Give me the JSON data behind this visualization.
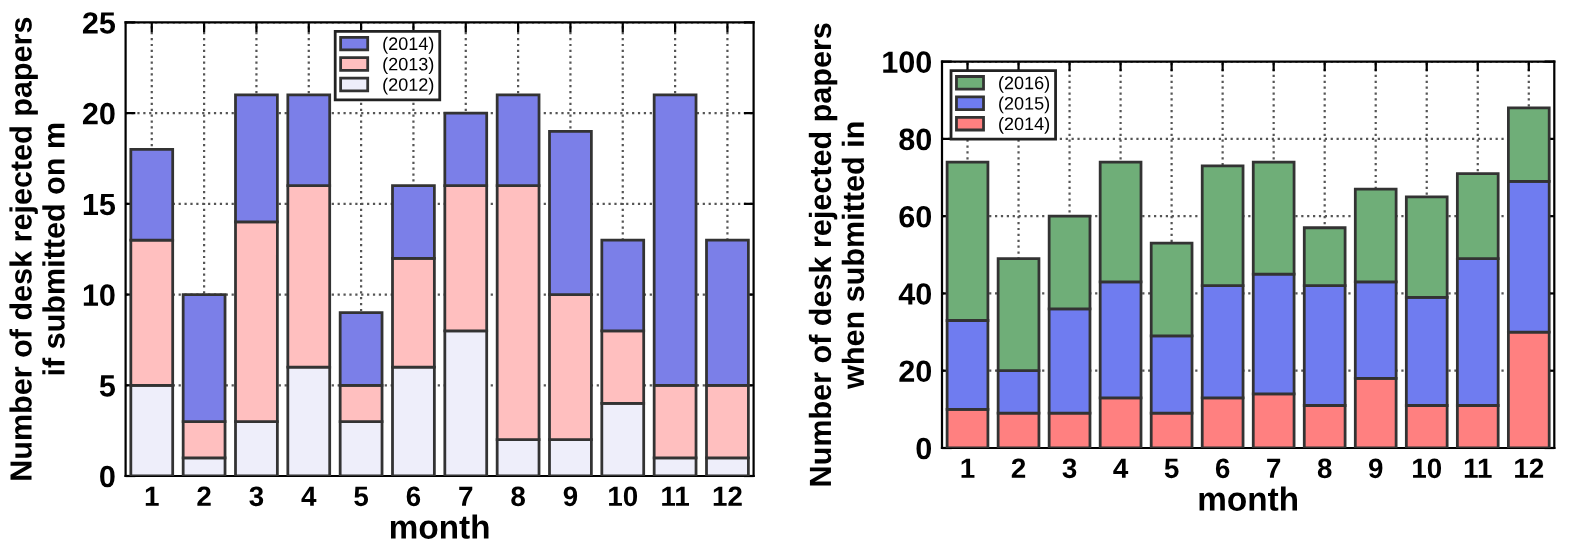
{
  "chart_data": [
    {
      "type": "bar",
      "stacked": true,
      "xlabel": "month",
      "ylabel": "Number of desk rejected papers\nif submitted on m",
      "categories": [
        "1",
        "2",
        "3",
        "4",
        "5",
        "6",
        "7",
        "8",
        "9",
        "10",
        "11",
        "12"
      ],
      "ylim": [
        0,
        25
      ],
      "yticks": [
        0,
        5,
        10,
        15,
        20,
        25
      ],
      "grid": true,
      "legend": "top",
      "series": [
        {
          "name": "(2012)",
          "color": "#eeeefa",
          "values": [
            5,
            1,
            3,
            6,
            3,
            6,
            8,
            2,
            2,
            4,
            1,
            1
          ]
        },
        {
          "name": "(2013)",
          "color": "#ffbfbf",
          "values": [
            8,
            2,
            11,
            10,
            2,
            6,
            8,
            14,
            8,
            4,
            4,
            4
          ]
        },
        {
          "name": "(2014)",
          "color": "#7b7fe8",
          "values": [
            5,
            7,
            7,
            5,
            4,
            4,
            4,
            5,
            9,
            5,
            16,
            8
          ]
        }
      ]
    },
    {
      "type": "bar",
      "stacked": true,
      "xlabel": "month",
      "ylabel": "Number of desk rejected papers\nwhen submitted in",
      "categories": [
        "1",
        "2",
        "3",
        "4",
        "5",
        "6",
        "7",
        "8",
        "9",
        "10",
        "11",
        "12"
      ],
      "ylim": [
        0,
        100
      ],
      "yticks": [
        0,
        20,
        40,
        60,
        80,
        100
      ],
      "grid": true,
      "legend": "top left",
      "series": [
        {
          "name": "(2014)",
          "color": "#ff8080",
          "values": [
            10,
            9,
            9,
            13,
            9,
            13,
            14,
            11,
            18,
            11,
            11,
            30
          ]
        },
        {
          "name": "(2015)",
          "color": "#6f7cf0",
          "values": [
            23,
            11,
            27,
            30,
            20,
            29,
            31,
            31,
            25,
            28,
            38,
            39
          ]
        },
        {
          "name": "(2016)",
          "color": "#6fae78",
          "values": [
            41,
            29,
            24,
            31,
            24,
            31,
            29,
            15,
            24,
            26,
            22,
            19
          ]
        }
      ]
    }
  ]
}
